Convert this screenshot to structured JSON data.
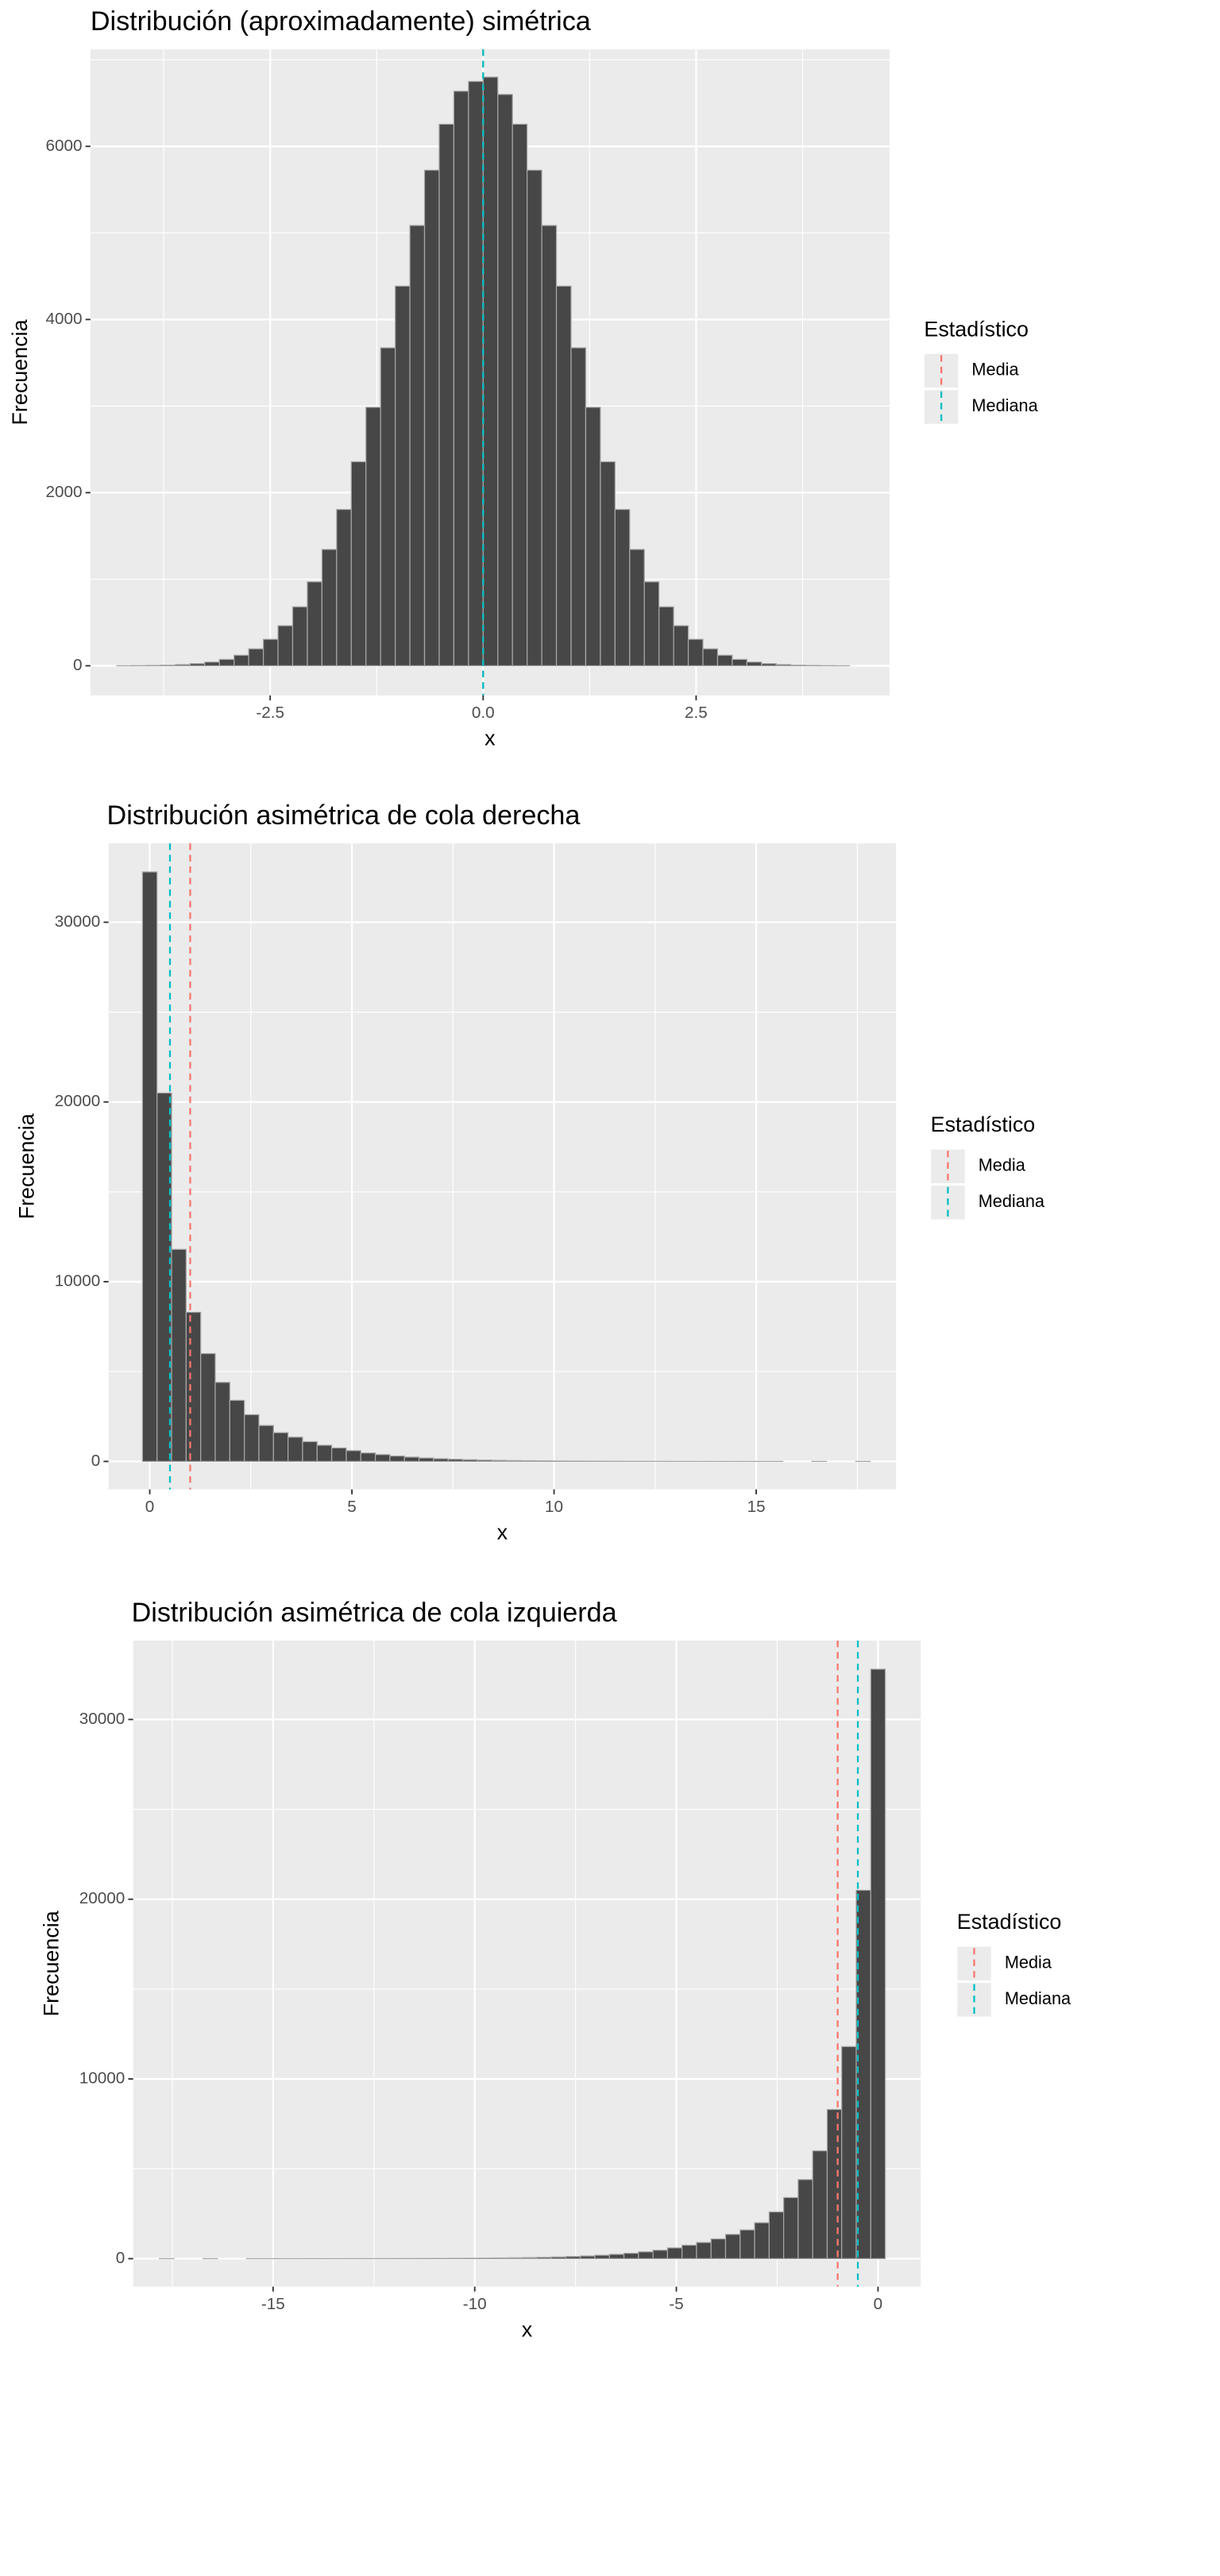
{
  "chart_data": [
    {
      "type": "histogram",
      "title": "Distribución (aproximadamente) simétrica",
      "x_label": "x",
      "y_label": "Frecuencia",
      "bins": [
        -4.3,
        -4.128,
        -3.956,
        -3.784,
        -3.612,
        -3.44,
        -3.268,
        -3.096,
        -2.924,
        -2.752,
        -2.58,
        -2.408,
        -2.236,
        -2.064,
        -1.892,
        -1.72,
        -1.548,
        -1.376,
        -1.204,
        -1.032,
        -0.86,
        -0.688,
        -0.516,
        -0.344,
        -0.172,
        0,
        0.172,
        0.344,
        0.516,
        0.688,
        0.86,
        1.032,
        1.204,
        1.376,
        1.548,
        1.72,
        1.892,
        2.064,
        2.236,
        2.408,
        2.58,
        2.752,
        2.924,
        3.096,
        3.268,
        3.44,
        3.612,
        3.784,
        3.956,
        4.128,
        4.3
      ],
      "values": [
        1,
        2,
        4,
        7,
        14,
        25,
        43,
        74,
        122,
        196,
        306,
        463,
        681,
        970,
        1344,
        1806,
        2357,
        2986,
        3673,
        4386,
        5086,
        5725,
        6256,
        6637,
        6750,
        6800,
        6600,
        6256,
        5725,
        5086,
        4386,
        3673,
        2986,
        2357,
        1806,
        1344,
        970,
        681,
        463,
        306,
        196,
        122,
        74,
        43,
        25,
        14,
        7,
        4,
        2,
        1
      ],
      "color": "#474747",
      "xlim": [
        -4.61,
        4.77
      ],
      "ylim": [
        -342,
        7120
      ],
      "xticks": [
        -2.5,
        {
          "value": 0,
          "label": "0.0"
        },
        2.5
      ],
      "x_minor_ticks": [
        -3.75,
        -1.25,
        1.25,
        3.75
      ],
      "yticks": [
        0,
        2000,
        4000,
        6000
      ],
      "y_minor_ticks": [
        1000,
        3000,
        5000,
        7000
      ],
      "grid": true,
      "legend_title": "Estadístico",
      "legend": "right",
      "lines": [
        {
          "name": "Media",
          "color": "#F8766D",
          "value": 0.0
        },
        {
          "name": "Mediana",
          "color": "#00BFC4",
          "value": 0.0
        }
      ]
    },
    {
      "type": "histogram",
      "title": "Distribución asimétrica de cola derecha",
      "x_label": "x",
      "y_label": "Frecuencia",
      "bins": [
        -0.18,
        0.18,
        0.54,
        0.9,
        1.26,
        1.62,
        1.98,
        2.34,
        2.7,
        3.06,
        3.42,
        3.78,
        4.14,
        4.5,
        4.86,
        5.22,
        5.58,
        5.94,
        6.3,
        6.66,
        7.02,
        7.38,
        7.74,
        8.1,
        8.46,
        8.82,
        9.18,
        9.54,
        9.9,
        10.26,
        10.62,
        10.98,
        11.34,
        11.7,
        12.06,
        12.42,
        12.78,
        13.14,
        13.5,
        13.86,
        14.22,
        14.58,
        14.94,
        15.3,
        15.66,
        16.02,
        16.38,
        16.74,
        17.1,
        17.46,
        17.82
      ],
      "values": [
        32800,
        20500,
        11800,
        8300,
        6000,
        4400,
        3400,
        2600,
        2000,
        1600,
        1350,
        1100,
        900,
        750,
        600,
        470,
        380,
        300,
        240,
        190,
        150,
        120,
        95,
        75,
        60,
        48,
        38,
        30,
        24,
        19,
        15,
        12,
        9,
        7,
        6,
        5,
        4,
        3,
        2,
        2,
        1,
        1,
        1,
        1,
        0,
        0,
        1,
        0,
        0,
        1
      ],
      "color": "#474747",
      "xlim": [
        -1.02,
        18.46
      ],
      "ylim": [
        -1555,
        34390
      ],
      "xticks": [
        0,
        5,
        10,
        15
      ],
      "x_minor_ticks": [
        2.5,
        7.5,
        12.5,
        17.5
      ],
      "yticks": [
        0,
        10000,
        20000,
        30000
      ],
      "y_minor_ticks": [
        5000,
        15000,
        25000
      ],
      "grid": true,
      "legend_title": "Estadístico",
      "legend": "right",
      "lines": [
        {
          "name": "Media",
          "color": "#F8766D",
          "value": 1.0
        },
        {
          "name": "Mediana",
          "color": "#00BFC4",
          "value": 0.5
        }
      ]
    },
    {
      "type": "histogram",
      "title": "Distribución asimétrica de cola izquierda",
      "x_label": "x",
      "y_label": "Frecuencia",
      "bins": [
        -17.82,
        -17.46,
        -17.1,
        -16.74,
        -16.38,
        -16.02,
        -15.66,
        -15.3,
        -14.94,
        -14.58,
        -14.22,
        -13.86,
        -13.5,
        -13.14,
        -12.78,
        -12.42,
        -12.06,
        -11.7,
        -11.34,
        -10.98,
        -10.62,
        -10.26,
        -9.9,
        -9.54,
        -9.18,
        -8.82,
        -8.46,
        -8.1,
        -7.74,
        -7.38,
        -7.02,
        -6.66,
        -6.3,
        -5.94,
        -5.58,
        -5.22,
        -4.86,
        -4.5,
        -4.14,
        -3.78,
        -3.42,
        -3.06,
        -2.7,
        -2.34,
        -1.98,
        -1.62,
        -1.26,
        -0.9,
        -0.54,
        -0.18,
        0.18
      ],
      "values": [
        1,
        0,
        0,
        1,
        0,
        0,
        1,
        1,
        1,
        1,
        2,
        2,
        3,
        4,
        5,
        6,
        7,
        9,
        12,
        15,
        19,
        24,
        30,
        38,
        48,
        60,
        75,
        95,
        120,
        150,
        190,
        240,
        300,
        380,
        470,
        600,
        750,
        900,
        1100,
        1350,
        1600,
        2000,
        2600,
        3400,
        4400,
        6000,
        8300,
        11800,
        20500,
        32800
      ],
      "color": "#474747",
      "xlim": [
        -18.47,
        1.06
      ],
      "ylim": [
        -1555,
        34390
      ],
      "xticks": [
        -15,
        -10,
        -5,
        0
      ],
      "x_minor_ticks": [
        -17.5,
        -12.5,
        -7.5,
        -2.5
      ],
      "yticks": [
        0,
        10000,
        20000,
        30000
      ],
      "y_minor_ticks": [
        5000,
        15000,
        25000
      ],
      "grid": true,
      "legend_title": "Estadístico",
      "legend": "right",
      "lines": [
        {
          "name": "Media",
          "color": "#F8766D",
          "value": -1.0
        },
        {
          "name": "Mediana",
          "color": "#00BFC4",
          "value": -0.5
        }
      ]
    }
  ]
}
